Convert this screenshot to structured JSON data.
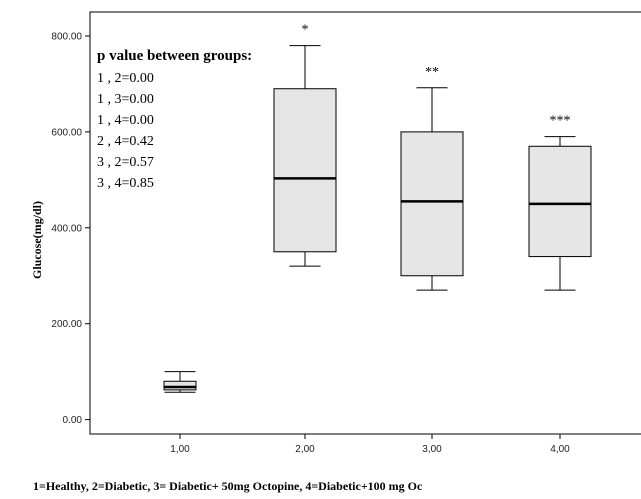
{
  "chart_data": {
    "type": "box",
    "ylabel": "Glucose(mg/dl)",
    "xlabel": "1=Healthy, 2=Diabetic, 3= Diabetic+ 50mg Octopine, 4=Diabetic+100 mg Oc",
    "ylim": [
      -30,
      850
    ],
    "y_ticks": [
      "0.00",
      "200.00",
      "400.00",
      "600.00",
      "800.00"
    ],
    "y_tick_values": [
      0,
      200,
      400,
      600,
      800
    ],
    "categories": [
      "1,00",
      "2,00",
      "3,00",
      "4,00"
    ],
    "boxes": [
      {
        "category": "1,00",
        "min": 57,
        "q1": 62,
        "median": 68,
        "q3": 80,
        "max": 100,
        "marker": ""
      },
      {
        "category": "2,00",
        "min": 320,
        "q1": 350,
        "median": 503,
        "q3": 690,
        "max": 780,
        "marker": "*"
      },
      {
        "category": "3,00",
        "min": 270,
        "q1": 300,
        "median": 455,
        "q3": 600,
        "max": 692,
        "marker": "**"
      },
      {
        "category": "4,00",
        "min": 270,
        "q1": 340,
        "median": 450,
        "q3": 570,
        "max": 590,
        "marker": "***"
      }
    ],
    "annotation": {
      "title": "p value between groups:",
      "lines": [
        "1 , 2=0.00",
        "1 , 3=0.00",
        "1 , 4=0.00",
        "2 , 4=0.42",
        "3 , 2=0.57",
        "3 , 4=0.85"
      ]
    },
    "colors": {
      "box_fill": "#e5e5e5",
      "stroke": "#000000"
    }
  }
}
